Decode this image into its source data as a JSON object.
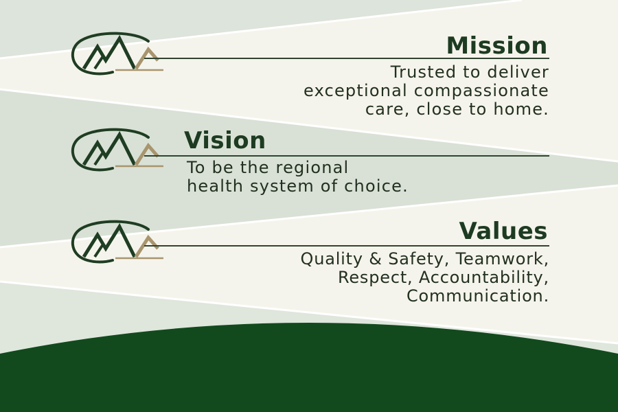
{
  "colors": {
    "background": "#eceee6",
    "stripe_light": "#f5f4ec",
    "stripe_sage": "#d9e1d6",
    "footer_green": "#124a1e",
    "logo_dark_green": "#1f3d22",
    "logo_tan": "#a8956e",
    "heading_text": "#1d3b21",
    "body_text": "#22301f"
  },
  "sections": {
    "mission": {
      "title": "Mission",
      "lines": [
        "Trusted to deliver",
        "exceptional compassionate",
        "care, close to home."
      ],
      "icon": "mountain-logo-icon"
    },
    "vision": {
      "title": "Vision",
      "lines": [
        "To be the regional",
        "health system of choice."
      ],
      "icon": "mountain-logo-icon"
    },
    "values": {
      "title": "Values",
      "lines": [
        "Quality & Safety, Teamwork,",
        "Respect, Accountability,",
        "Communication."
      ],
      "icon": "mountain-logo-icon"
    }
  }
}
